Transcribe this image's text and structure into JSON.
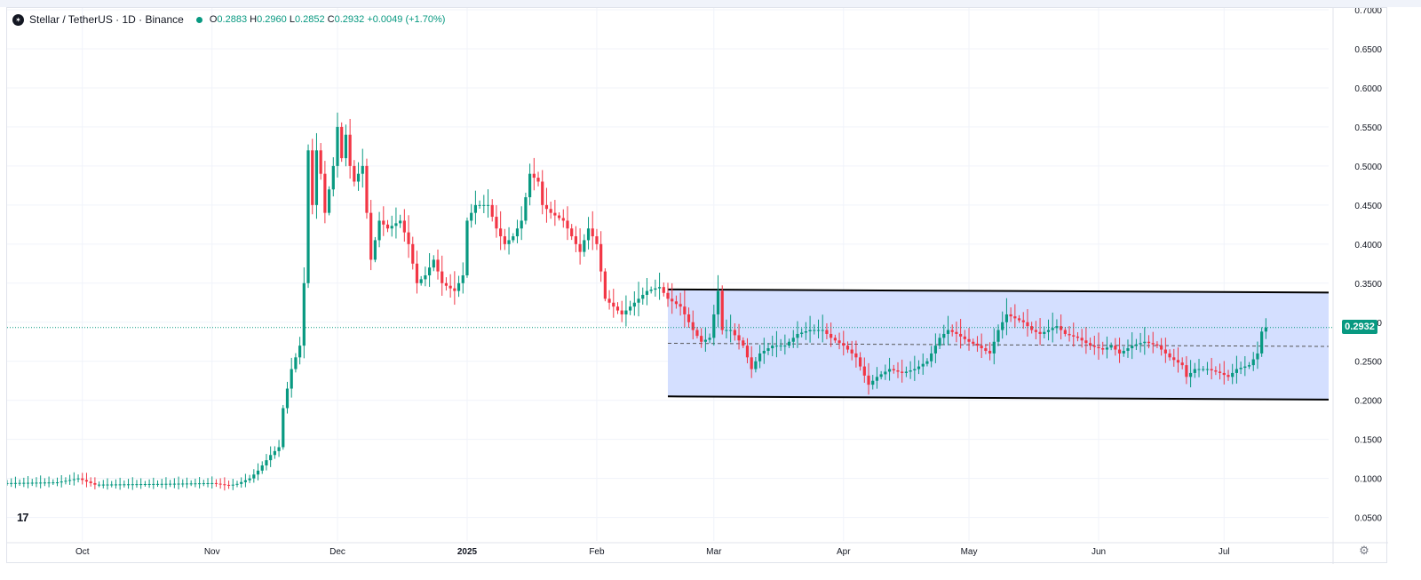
{
  "legend": {
    "symbol_icon": "stellar-logo-icon",
    "title": "Stellar / TetherUS · 1D · Binance",
    "open_key": "O",
    "open": "0.2883",
    "high_key": "H",
    "high": "0.2960",
    "low_key": "L",
    "low": "0.2852",
    "close_key": "C",
    "close": "0.2932",
    "change": "+0.0049 (+1.70%)"
  },
  "price_tag": "0.2932",
  "colors": {
    "up": "#089981",
    "down": "#f23645",
    "channel_fill": "#cfdcff",
    "last_price": "#089981"
  },
  "icons": {
    "brand": "tradingview-logo-icon",
    "settings": "gear-icon"
  },
  "chart_data": {
    "type": "candlestick",
    "title": "Stellar / TetherUS · 1D · Binance",
    "xlabel": "",
    "ylabel": "",
    "ylim": [
      0.02,
      0.7
    ],
    "y_ticks": [
      "0.7000",
      "0.6500",
      "0.6000",
      "0.5500",
      "0.5000",
      "0.4500",
      "0.4000",
      "0.3500",
      "0.3000",
      "0.2500",
      "0.2000",
      "0.1500",
      "0.1000",
      "0.0500"
    ],
    "x_ticks": [
      {
        "label": "Oct",
        "date": "2024-10-01"
      },
      {
        "label": "Nov",
        "date": "2024-11-01"
      },
      {
        "label": "Dec",
        "date": "2024-12-01"
      },
      {
        "label": "2025",
        "date": "2025-01-01"
      },
      {
        "label": "Feb",
        "date": "2025-02-01"
      },
      {
        "label": "Mar",
        "date": "2025-03-01"
      },
      {
        "label": "Apr",
        "date": "2025-04-01"
      },
      {
        "label": "May",
        "date": "2025-05-01"
      },
      {
        "label": "Jun",
        "date": "2025-06-01"
      },
      {
        "label": "Jul",
        "date": "2025-07-01"
      }
    ],
    "x_range": [
      "2024-09-13",
      "2025-07-26"
    ],
    "close_path": [
      [
        "2024-09-13",
        0.094
      ],
      [
        "2024-09-25",
        0.095
      ],
      [
        "2024-09-30",
        0.1
      ],
      [
        "2024-10-04",
        0.092
      ],
      [
        "2024-10-20",
        0.093
      ],
      [
        "2024-11-01",
        0.094
      ],
      [
        "2024-11-05",
        0.091
      ],
      [
        "2024-11-07",
        0.093
      ],
      [
        "2024-11-10",
        0.1
      ],
      [
        "2024-11-12",
        0.11
      ],
      [
        "2024-11-15",
        0.13
      ],
      [
        "2024-11-17",
        0.14
      ],
      [
        "2024-11-18",
        0.19
      ],
      [
        "2024-11-20",
        0.24
      ],
      [
        "2024-11-22",
        0.27
      ],
      [
        "2024-11-23",
        0.35
      ],
      [
        "2024-11-24",
        0.52
      ],
      [
        "2024-11-25",
        0.45
      ],
      [
        "2024-11-26",
        0.52
      ],
      [
        "2024-11-27",
        0.49
      ],
      [
        "2024-11-28",
        0.44
      ],
      [
        "2024-11-30",
        0.5
      ],
      [
        "2024-12-01",
        0.55
      ],
      [
        "2024-12-02",
        0.51
      ],
      [
        "2024-12-03",
        0.54
      ],
      [
        "2024-12-04",
        0.5
      ],
      [
        "2024-12-05",
        0.48
      ],
      [
        "2024-12-07",
        0.5
      ],
      [
        "2024-12-09",
        0.38
      ],
      [
        "2024-12-11",
        0.43
      ],
      [
        "2024-12-13",
        0.42
      ],
      [
        "2024-12-16",
        0.43
      ],
      [
        "2024-12-18",
        0.4
      ],
      [
        "2024-12-20",
        0.35
      ],
      [
        "2024-12-22",
        0.36
      ],
      [
        "2024-12-24",
        0.38
      ],
      [
        "2024-12-26",
        0.35
      ],
      [
        "2024-12-29",
        0.34
      ],
      [
        "2024-12-31",
        0.36
      ],
      [
        "2025-01-01",
        0.43
      ],
      [
        "2025-01-03",
        0.45
      ],
      [
        "2025-01-06",
        0.45
      ],
      [
        "2025-01-08",
        0.42
      ],
      [
        "2025-01-10",
        0.4
      ],
      [
        "2025-01-12",
        0.41
      ],
      [
        "2025-01-14",
        0.43
      ],
      [
        "2025-01-16",
        0.49
      ],
      [
        "2025-01-18",
        0.48
      ],
      [
        "2025-01-19",
        0.45
      ],
      [
        "2025-01-21",
        0.44
      ],
      [
        "2025-01-24",
        0.43
      ],
      [
        "2025-01-26",
        0.41
      ],
      [
        "2025-01-28",
        0.39
      ],
      [
        "2025-01-30",
        0.42
      ],
      [
        "2025-02-01",
        0.4
      ],
      [
        "2025-02-03",
        0.33
      ],
      [
        "2025-02-05",
        0.32
      ],
      [
        "2025-02-07",
        0.31
      ],
      [
        "2025-02-09",
        0.32
      ],
      [
        "2025-02-11",
        0.33
      ],
      [
        "2025-02-13",
        0.34
      ],
      [
        "2025-02-16",
        0.345
      ],
      [
        "2025-02-18",
        0.33
      ],
      [
        "2025-02-21",
        0.32
      ],
      [
        "2025-02-24",
        0.29
      ],
      [
        "2025-02-26",
        0.275
      ],
      [
        "2025-02-28",
        0.28
      ],
      [
        "2025-03-02",
        0.34
      ],
      [
        "2025-03-03",
        0.29
      ],
      [
        "2025-03-05",
        0.29
      ],
      [
        "2025-03-08",
        0.27
      ],
      [
        "2025-03-10",
        0.24
      ],
      [
        "2025-03-12",
        0.26
      ],
      [
        "2025-03-15",
        0.27
      ],
      [
        "2025-03-18",
        0.27
      ],
      [
        "2025-03-21",
        0.285
      ],
      [
        "2025-03-24",
        0.29
      ],
      [
        "2025-03-27",
        0.29
      ],
      [
        "2025-03-29",
        0.28
      ],
      [
        "2025-04-01",
        0.27
      ],
      [
        "2025-04-04",
        0.255
      ],
      [
        "2025-04-07",
        0.22
      ],
      [
        "2025-04-09",
        0.23
      ],
      [
        "2025-04-12",
        0.24
      ],
      [
        "2025-04-15",
        0.235
      ],
      [
        "2025-04-18",
        0.24
      ],
      [
        "2025-04-21",
        0.25
      ],
      [
        "2025-04-24",
        0.28
      ],
      [
        "2025-04-26",
        0.29
      ],
      [
        "2025-04-28",
        0.285
      ],
      [
        "2025-05-01",
        0.275
      ],
      [
        "2025-05-03",
        0.27
      ],
      [
        "2025-05-06",
        0.26
      ],
      [
        "2025-05-08",
        0.29
      ],
      [
        "2025-05-10",
        0.31
      ],
      [
        "2025-05-12",
        0.305
      ],
      [
        "2025-05-14",
        0.3
      ],
      [
        "2025-05-16",
        0.29
      ],
      [
        "2025-05-18",
        0.285
      ],
      [
        "2025-05-20",
        0.29
      ],
      [
        "2025-05-22",
        0.295
      ],
      [
        "2025-05-24",
        0.285
      ],
      [
        "2025-05-27",
        0.28
      ],
      [
        "2025-05-30",
        0.27
      ],
      [
        "2025-06-02",
        0.265
      ],
      [
        "2025-06-04",
        0.27
      ],
      [
        "2025-06-06",
        0.26
      ],
      [
        "2025-06-09",
        0.27
      ],
      [
        "2025-06-12",
        0.275
      ],
      [
        "2025-06-15",
        0.27
      ],
      [
        "2025-06-18",
        0.255
      ],
      [
        "2025-06-21",
        0.245
      ],
      [
        "2025-06-22",
        0.23
      ],
      [
        "2025-06-24",
        0.24
      ],
      [
        "2025-06-27",
        0.24
      ],
      [
        "2025-06-30",
        0.235
      ],
      [
        "2025-07-02",
        0.23
      ],
      [
        "2025-07-04",
        0.24
      ],
      [
        "2025-07-07",
        0.245
      ],
      [
        "2025-07-09",
        0.26
      ],
      [
        "2025-07-10",
        0.288
      ],
      [
        "2025-07-11",
        0.2932
      ]
    ],
    "annotations": {
      "channel": {
        "x_start": "2025-02-18",
        "x_end": "2025-07-26",
        "upper": [
          0.342,
          0.338
        ],
        "lower": [
          0.205,
          0.201
        ],
        "midline": [
          0.273,
          0.269
        ]
      },
      "last_price_line": 0.2932
    },
    "grid": true,
    "legend": "top-left"
  }
}
